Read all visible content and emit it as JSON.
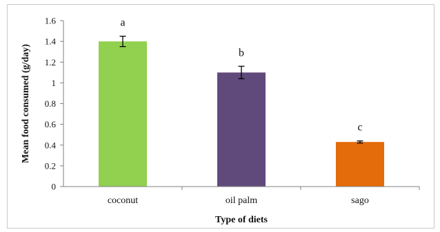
{
  "chart_data": {
    "type": "bar",
    "title": "",
    "xlabel": "Type of diets",
    "ylabel": "Mean food consumed (g/day)",
    "ylim": [
      0,
      1.6
    ],
    "yticks": [
      0,
      0.2,
      0.4,
      0.6,
      0.8,
      1,
      1.2,
      1.4,
      1.6
    ],
    "ytick_labels": [
      "0",
      "0.2",
      "0.4",
      "0.6",
      "0.8",
      "1",
      "1.2",
      "1.4",
      "1.6"
    ],
    "categories": [
      "coconut",
      "oil palm",
      "sago"
    ],
    "values": [
      1.4,
      1.1,
      0.43
    ],
    "errors": [
      0.05,
      0.06,
      0.01
    ],
    "significance_letters": [
      "a",
      "b",
      "c"
    ],
    "colors": [
      "#92d050",
      "#604a7b",
      "#e46c0a"
    ],
    "grid": false,
    "legend": "none"
  }
}
